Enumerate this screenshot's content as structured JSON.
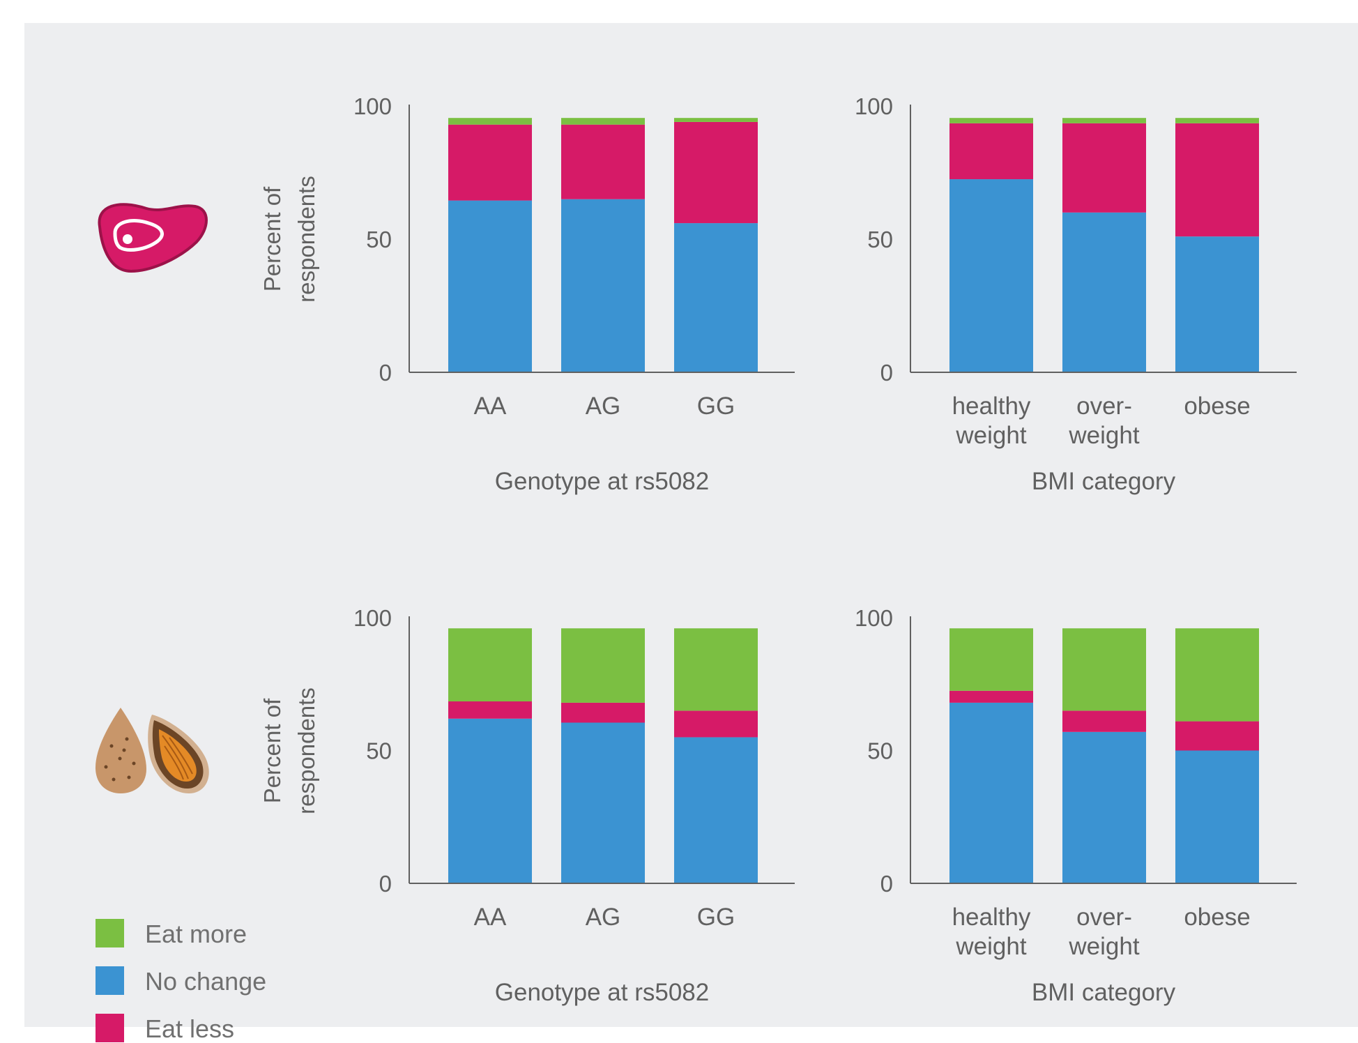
{
  "legend": {
    "eat_more": "Eat more",
    "no_change": "No change",
    "eat_less": "Eat less"
  },
  "colors": {
    "eat_more": "#7bbf42",
    "no_change": "#3b93d2",
    "eat_less": "#d61a67",
    "axis": "#606060",
    "meat_icon": "#d61a67",
    "nut_light": "#c8966a",
    "nut_dark": "#6b4526",
    "nut_kernel": "#e48a26"
  },
  "rows": [
    {
      "icon": "meat-icon",
      "ylabel_line1": "Percent of",
      "ylabel_line2": "respondents"
    },
    {
      "icon": "nuts-icon",
      "ylabel_line1": "Percent of",
      "ylabel_line2": "respondents"
    }
  ],
  "chart_data": [
    {
      "type": "bar",
      "stacked": true,
      "xlabel": "Genotype at rs5082",
      "ylabel": "Percent of respondents",
      "ylim": [
        0,
        100
      ],
      "yticks": [
        0,
        50,
        100
      ],
      "categories": [
        [
          "AA"
        ],
        [
          "AG"
        ],
        [
          "GG"
        ]
      ],
      "series": [
        {
          "name": "No change",
          "key": "no_change",
          "values": [
            64.5,
            65,
            56
          ]
        },
        {
          "name": "Eat less",
          "key": "eat_less",
          "values": [
            28.5,
            28,
            38
          ]
        },
        {
          "name": "Eat more",
          "key": "eat_more",
          "values": [
            2.5,
            2.5,
            1.5
          ]
        }
      ]
    },
    {
      "type": "bar",
      "stacked": true,
      "xlabel": "BMI category",
      "ylabel": "",
      "ylim": [
        0,
        100
      ],
      "yticks": [
        0,
        50,
        100
      ],
      "categories": [
        [
          "healthy",
          "weight"
        ],
        [
          "over-",
          "weight"
        ],
        [
          "obese"
        ]
      ],
      "series": [
        {
          "name": "No change",
          "key": "no_change",
          "values": [
            72.5,
            60,
            51
          ]
        },
        {
          "name": "Eat less",
          "key": "eat_less",
          "values": [
            21,
            33.5,
            42.5
          ]
        },
        {
          "name": "Eat more",
          "key": "eat_more",
          "values": [
            2,
            2,
            2
          ]
        }
      ]
    },
    {
      "type": "bar",
      "stacked": true,
      "xlabel": "Genotype at rs5082",
      "ylabel": "Percent of respondents",
      "ylim": [
        0,
        100
      ],
      "yticks": [
        0,
        50,
        100
      ],
      "categories": [
        [
          "AA"
        ],
        [
          "AG"
        ],
        [
          "GG"
        ]
      ],
      "series": [
        {
          "name": "No change",
          "key": "no_change",
          "values": [
            62,
            60.5,
            55
          ]
        },
        {
          "name": "Eat less",
          "key": "eat_less",
          "values": [
            6.5,
            7.5,
            10
          ]
        },
        {
          "name": "Eat more",
          "key": "eat_more",
          "values": [
            27.5,
            28,
            31
          ]
        }
      ]
    },
    {
      "type": "bar",
      "stacked": true,
      "xlabel": "BMI category",
      "ylabel": "",
      "ylim": [
        0,
        100
      ],
      "yticks": [
        0,
        50,
        100
      ],
      "categories": [
        [
          "healthy",
          "weight"
        ],
        [
          "over-",
          "weight"
        ],
        [
          "obese"
        ]
      ],
      "series": [
        {
          "name": "No change",
          "key": "no_change",
          "values": [
            68,
            57,
            50
          ]
        },
        {
          "name": "Eat less",
          "key": "eat_less",
          "values": [
            4.5,
            8,
            11
          ]
        },
        {
          "name": "Eat more",
          "key": "eat_more",
          "values": [
            23.5,
            31,
            35
          ]
        }
      ]
    }
  ]
}
